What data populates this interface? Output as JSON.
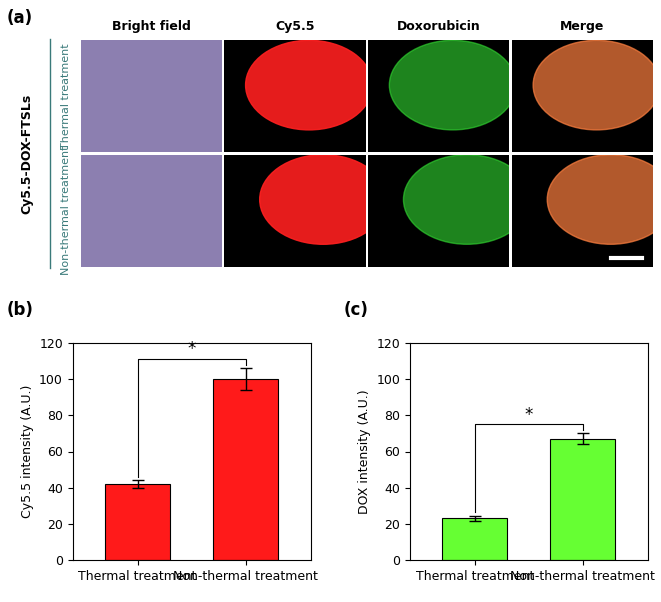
{
  "image_panel": {
    "label": "(a)",
    "group": "Cy5.5-DOX-FTSLs",
    "columns": [
      "Bright field",
      "Cy5.5",
      "Doxorubicin",
      "Merge"
    ],
    "rows": [
      "Thermal treatment",
      "Non-thermal treatment"
    ]
  },
  "chart_data": [
    {
      "type": "bar",
      "title": "(b)",
      "y_label": "Cy5.5 intensity (A.U.)",
      "categories": [
        "Thermal treatment",
        "Non-thermal treatment"
      ],
      "values": [
        42,
        100
      ],
      "error": [
        2,
        6
      ],
      "color": "#ff1a1a",
      "ylim": [
        0,
        120
      ],
      "yticks": [
        0,
        20,
        40,
        60,
        80,
        100,
        120
      ],
      "annotations": [
        {
          "text": "*",
          "between": [
            0,
            1
          ]
        }
      ]
    },
    {
      "type": "bar",
      "title": "(c)",
      "y_label": "DOX intensity (A.U.)",
      "categories": [
        "Thermal treatment",
        "Non-thermal treatment"
      ],
      "values": [
        23,
        67
      ],
      "error": [
        1.5,
        3
      ],
      "color": "#66ff33",
      "ylim": [
        0,
        120
      ],
      "yticks": [
        0,
        20,
        40,
        60,
        80,
        100,
        120
      ],
      "annotations": [
        {
          "text": "*",
          "between": [
            0,
            1
          ]
        }
      ]
    }
  ]
}
